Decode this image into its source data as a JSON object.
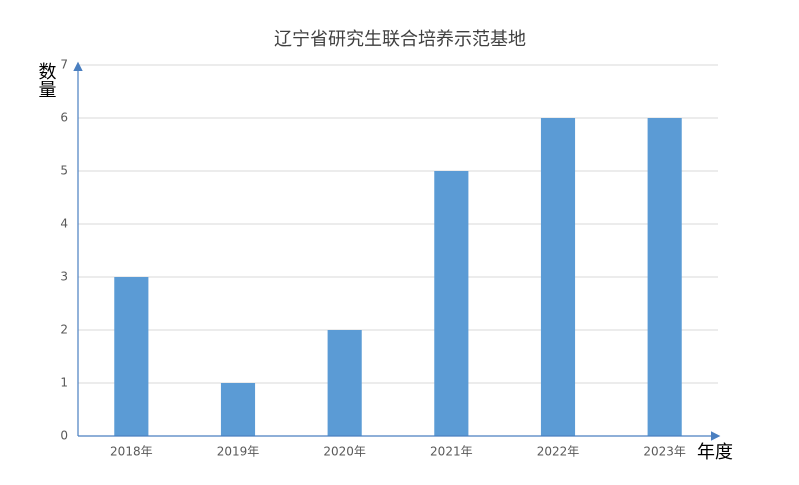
{
  "chart_data": {
    "type": "bar",
    "title": "辽宁省研究生联合培养示范基地",
    "x_label": "年度",
    "y_label": "数量",
    "categories": [
      "2018年",
      "2019年",
      "2020年",
      "2021年",
      "2022年",
      "2023年"
    ],
    "values": [
      3,
      1,
      2,
      5,
      6,
      6
    ],
    "color": "#5b9bd5",
    "ylim": [
      0,
      7
    ],
    "yticks": [
      0,
      1,
      2,
      3,
      4,
      5,
      6,
      7
    ],
    "grid": true
  }
}
